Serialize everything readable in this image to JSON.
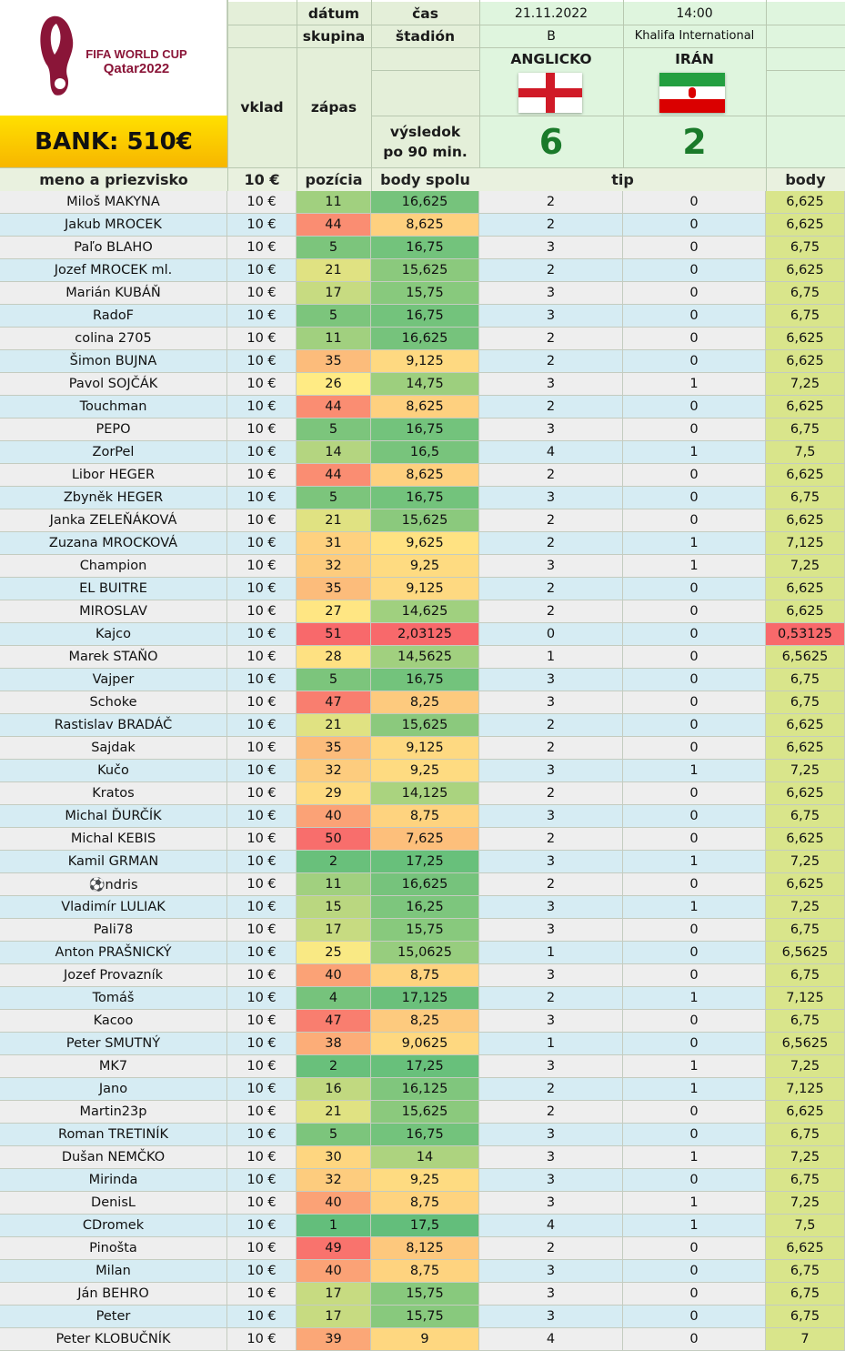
{
  "header": {
    "logo_line1": "FIFA WORLD CUP",
    "logo_line2": "Qatar2022",
    "bank": "BANK: 510€",
    "label_datum": "dátum",
    "label_skupina": "skupina",
    "label_vklad": "vklad",
    "label_zapas": "zápas",
    "label_cas": "čas",
    "label_stadion": "štadión",
    "label_vysledok1": "výsledok",
    "label_vysledok2": "po 90 min.",
    "date": "21.11.2022",
    "time": "14:00",
    "group": "B",
    "stadium": "Khalifa International",
    "team_home": "ANGLICKO",
    "team_away": "IRÁN",
    "score_home": "6",
    "score_away": "2"
  },
  "columns": {
    "name": "meno a priezvisko",
    "stake": "10 €",
    "position": "pozícia",
    "total": "body spolu",
    "tip": "tip",
    "points": "body"
  },
  "colors": {
    "pos_best": "#63be7b",
    "pos_mid": "#ffeb84",
    "pos_worst": "#f8696b",
    "body_good": "#d9e58b",
    "body_bad": "#f8696b"
  },
  "rows": [
    {
      "name": "Miloš MAKYNA",
      "stake": "10 €",
      "pos": "11",
      "total": "16,625",
      "tip_home": "2",
      "tip_away": "0",
      "points": "6,625"
    },
    {
      "name": "Jakub MROCEK",
      "stake": "10 €",
      "pos": "44",
      "total": "8,625",
      "tip_home": "2",
      "tip_away": "0",
      "points": "6,625"
    },
    {
      "name": "Paľo BLAHO",
      "stake": "10 €",
      "pos": "5",
      "total": "16,75",
      "tip_home": "3",
      "tip_away": "0",
      "points": "6,75"
    },
    {
      "name": "Jozef MROCEK ml.",
      "stake": "10 €",
      "pos": "21",
      "total": "15,625",
      "tip_home": "2",
      "tip_away": "0",
      "points": "6,625"
    },
    {
      "name": "Marián KUBÁŇ",
      "stake": "10 €",
      "pos": "17",
      "total": "15,75",
      "tip_home": "3",
      "tip_away": "0",
      "points": "6,75"
    },
    {
      "name": "RadoF",
      "stake": "10 €",
      "pos": "5",
      "total": "16,75",
      "tip_home": "3",
      "tip_away": "0",
      "points": "6,75"
    },
    {
      "name": "colina 2705",
      "stake": "10 €",
      "pos": "11",
      "total": "16,625",
      "tip_home": "2",
      "tip_away": "0",
      "points": "6,625"
    },
    {
      "name": "Šimon BUJNA",
      "stake": "10 €",
      "pos": "35",
      "total": "9,125",
      "tip_home": "2",
      "tip_away": "0",
      "points": "6,625"
    },
    {
      "name": "Pavol SOJČÁK",
      "stake": "10 €",
      "pos": "26",
      "total": "14,75",
      "tip_home": "3",
      "tip_away": "1",
      "points": "7,25"
    },
    {
      "name": "Touchman",
      "stake": "10 €",
      "pos": "44",
      "total": "8,625",
      "tip_home": "2",
      "tip_away": "0",
      "points": "6,625"
    },
    {
      "name": "PEPO",
      "stake": "10 €",
      "pos": "5",
      "total": "16,75",
      "tip_home": "3",
      "tip_away": "0",
      "points": "6,75"
    },
    {
      "name": "ZorPel",
      "stake": "10 €",
      "pos": "14",
      "total": "16,5",
      "tip_home": "4",
      "tip_away": "1",
      "points": "7,5"
    },
    {
      "name": "Libor HEGER",
      "stake": "10 €",
      "pos": "44",
      "total": "8,625",
      "tip_home": "2",
      "tip_away": "0",
      "points": "6,625"
    },
    {
      "name": "Zbyněk HEGER",
      "stake": "10 €",
      "pos": "5",
      "total": "16,75",
      "tip_home": "3",
      "tip_away": "0",
      "points": "6,75"
    },
    {
      "name": "Janka ZELEŇÁKOVÁ",
      "stake": "10 €",
      "pos": "21",
      "total": "15,625",
      "tip_home": "2",
      "tip_away": "0",
      "points": "6,625"
    },
    {
      "name": "Zuzana MROCKOVÁ",
      "stake": "10 €",
      "pos": "31",
      "total": "9,625",
      "tip_home": "2",
      "tip_away": "1",
      "points": "7,125"
    },
    {
      "name": "Champion",
      "stake": "10 €",
      "pos": "32",
      "total": "9,25",
      "tip_home": "3",
      "tip_away": "1",
      "points": "7,25"
    },
    {
      "name": "EL BUITRE",
      "stake": "10 €",
      "pos": "35",
      "total": "9,125",
      "tip_home": "2",
      "tip_away": "0",
      "points": "6,625"
    },
    {
      "name": "MIROSLAV",
      "stake": "10 €",
      "pos": "27",
      "total": "14,625",
      "tip_home": "2",
      "tip_away": "0",
      "points": "6,625"
    },
    {
      "name": "Kajco",
      "stake": "10 €",
      "pos": "51",
      "total": "2,03125",
      "tip_home": "0",
      "tip_away": "0",
      "points": "0,53125"
    },
    {
      "name": "Marek STAŇO",
      "stake": "10 €",
      "pos": "28",
      "total": "14,5625",
      "tip_home": "1",
      "tip_away": "0",
      "points": "6,5625"
    },
    {
      "name": "Vajper",
      "stake": "10 €",
      "pos": "5",
      "total": "16,75",
      "tip_home": "3",
      "tip_away": "0",
      "points": "6,75"
    },
    {
      "name": "Schoke",
      "stake": "10 €",
      "pos": "47",
      "total": "8,25",
      "tip_home": "3",
      "tip_away": "0",
      "points": "6,75"
    },
    {
      "name": "Rastislav BRADÁČ",
      "stake": "10 €",
      "pos": "21",
      "total": "15,625",
      "tip_home": "2",
      "tip_away": "0",
      "points": "6,625"
    },
    {
      "name": "Sajdak",
      "stake": "10 €",
      "pos": "35",
      "total": "9,125",
      "tip_home": "2",
      "tip_away": "0",
      "points": "6,625"
    },
    {
      "name": "Kučo",
      "stake": "10 €",
      "pos": "32",
      "total": "9,25",
      "tip_home": "3",
      "tip_away": "1",
      "points": "7,25"
    },
    {
      "name": "Kratos",
      "stake": "10 €",
      "pos": "29",
      "total": "14,125",
      "tip_home": "2",
      "tip_away": "0",
      "points": "6,625"
    },
    {
      "name": "Michal ĎURČÍK",
      "stake": "10 €",
      "pos": "40",
      "total": "8,75",
      "tip_home": "3",
      "tip_away": "0",
      "points": "6,75"
    },
    {
      "name": "Michal KEBIS",
      "stake": "10 €",
      "pos": "50",
      "total": "7,625",
      "tip_home": "2",
      "tip_away": "0",
      "points": "6,625"
    },
    {
      "name": "Kamil GRMAN",
      "stake": "10 €",
      "pos": "2",
      "total": "17,25",
      "tip_home": "3",
      "tip_away": "1",
      "points": "7,25"
    },
    {
      "name": "⚽ndris",
      "stake": "10 €",
      "pos": "11",
      "total": "16,625",
      "tip_home": "2",
      "tip_away": "0",
      "points": "6,625"
    },
    {
      "name": "Vladimír LULIAK",
      "stake": "10 €",
      "pos": "15",
      "total": "16,25",
      "tip_home": "3",
      "tip_away": "1",
      "points": "7,25"
    },
    {
      "name": "Pali78",
      "stake": "10 €",
      "pos": "17",
      "total": "15,75",
      "tip_home": "3",
      "tip_away": "0",
      "points": "6,75"
    },
    {
      "name": "Anton PRAŠNICKÝ",
      "stake": "10 €",
      "pos": "25",
      "total": "15,0625",
      "tip_home": "1",
      "tip_away": "0",
      "points": "6,5625"
    },
    {
      "name": "Jozef Provazník",
      "stake": "10 €",
      "pos": "40",
      "total": "8,75",
      "tip_home": "3",
      "tip_away": "0",
      "points": "6,75"
    },
    {
      "name": "Tomáš",
      "stake": "10 €",
      "pos": "4",
      "total": "17,125",
      "tip_home": "2",
      "tip_away": "1",
      "points": "7,125"
    },
    {
      "name": "Kacoo",
      "stake": "10 €",
      "pos": "47",
      "total": "8,25",
      "tip_home": "3",
      "tip_away": "0",
      "points": "6,75"
    },
    {
      "name": "Peter SMUTNÝ",
      "stake": "10 €",
      "pos": "38",
      "total": "9,0625",
      "tip_home": "1",
      "tip_away": "0",
      "points": "6,5625"
    },
    {
      "name": "MK7",
      "stake": "10 €",
      "pos": "2",
      "total": "17,25",
      "tip_home": "3",
      "tip_away": "1",
      "points": "7,25"
    },
    {
      "name": "Jano",
      "stake": "10 €",
      "pos": "16",
      "total": "16,125",
      "tip_home": "2",
      "tip_away": "1",
      "points": "7,125"
    },
    {
      "name": "Martin23p",
      "stake": "10 €",
      "pos": "21",
      "total": "15,625",
      "tip_home": "2",
      "tip_away": "0",
      "points": "6,625"
    },
    {
      "name": "Roman TRETINÍK",
      "stake": "10 €",
      "pos": "5",
      "total": "16,75",
      "tip_home": "3",
      "tip_away": "0",
      "points": "6,75"
    },
    {
      "name": "Dušan NEMČKO",
      "stake": "10 €",
      "pos": "30",
      "total": "14",
      "tip_home": "3",
      "tip_away": "1",
      "points": "7,25"
    },
    {
      "name": "Mirinda",
      "stake": "10 €",
      "pos": "32",
      "total": "9,25",
      "tip_home": "3",
      "tip_away": "0",
      "points": "6,75"
    },
    {
      "name": "DenisL",
      "stake": "10 €",
      "pos": "40",
      "total": "8,75",
      "tip_home": "3",
      "tip_away": "1",
      "points": "7,25"
    },
    {
      "name": "CDromek",
      "stake": "10 €",
      "pos": "1",
      "total": "17,5",
      "tip_home": "4",
      "tip_away": "1",
      "points": "7,5"
    },
    {
      "name": "Pinošta",
      "stake": "10 €",
      "pos": "49",
      "total": "8,125",
      "tip_home": "2",
      "tip_away": "0",
      "points": "6,625"
    },
    {
      "name": "Milan",
      "stake": "10 €",
      "pos": "40",
      "total": "8,75",
      "tip_home": "3",
      "tip_away": "0",
      "points": "6,75"
    },
    {
      "name": "Ján BEHRO",
      "stake": "10 €",
      "pos": "17",
      "total": "15,75",
      "tip_home": "3",
      "tip_away": "0",
      "points": "6,75"
    },
    {
      "name": "Peter",
      "stake": "10 €",
      "pos": "17",
      "total": "15,75",
      "tip_home": "3",
      "tip_away": "0",
      "points": "6,75"
    },
    {
      "name": "Peter KLOBUČNÍK",
      "stake": "10 €",
      "pos": "39",
      "total": "9",
      "tip_home": "4",
      "tip_away": "0",
      "points": "7"
    }
  ]
}
